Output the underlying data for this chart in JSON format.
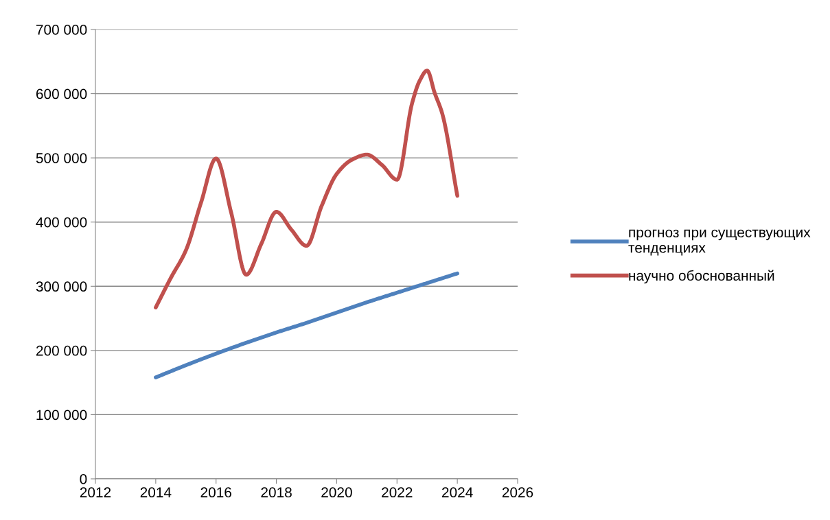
{
  "chart_data": {
    "type": "line",
    "x": [
      2014,
      2015,
      2016,
      2017,
      2018,
      2019,
      2020,
      2021,
      2022,
      2023,
      2024
    ],
    "series": [
      {
        "name": "прогноз при существующих тенденциях",
        "color": "#4f81bd",
        "values": [
          158000,
          177000,
          195000,
          212000,
          228000,
          243000,
          259000,
          275000,
          290000,
          305000,
          320000
        ]
      },
      {
        "name": "научно обоснованный",
        "color": "#c0504d",
        "x": [
          2014,
          2014.5,
          2015,
          2015.5,
          2016,
          2016.5,
          2017,
          2017.5,
          2018,
          2018.5,
          2019,
          2019.5,
          2020,
          2020.5,
          2021,
          2021.5,
          2022,
          2022.5,
          2022.75,
          2023,
          2023.25,
          2023.5,
          2024
        ],
        "values": [
          267000,
          313000,
          356000,
          430000,
          499000,
          415000,
          318000,
          366000,
          416000,
          388000,
          363000,
          425000,
          475000,
          497000,
          505000,
          489000,
          466000,
          585000,
          620000,
          636000,
          601000,
          569000,
          441000
        ]
      }
    ],
    "xlim": [
      2012,
      2026
    ],
    "xticks": [
      2012,
      2014,
      2016,
      2018,
      2020,
      2022,
      2024,
      2026
    ],
    "ylim": [
      0,
      700000
    ],
    "yticks": [
      0,
      {
        "value": 100000,
        "label": "100 000"
      },
      {
        "value": 200000,
        "label": "200 000"
      },
      {
        "value": 300000,
        "label": "300 000"
      },
      {
        "value": 400000,
        "label": "400 000"
      },
      {
        "value": 500000,
        "label": "500 000"
      },
      {
        "value": 600000,
        "label": "600 000"
      },
      {
        "value": 700000,
        "label": "700 000"
      }
    ],
    "grid": "y",
    "legend": "right",
    "marker": "none",
    "line_style": "solid"
  }
}
